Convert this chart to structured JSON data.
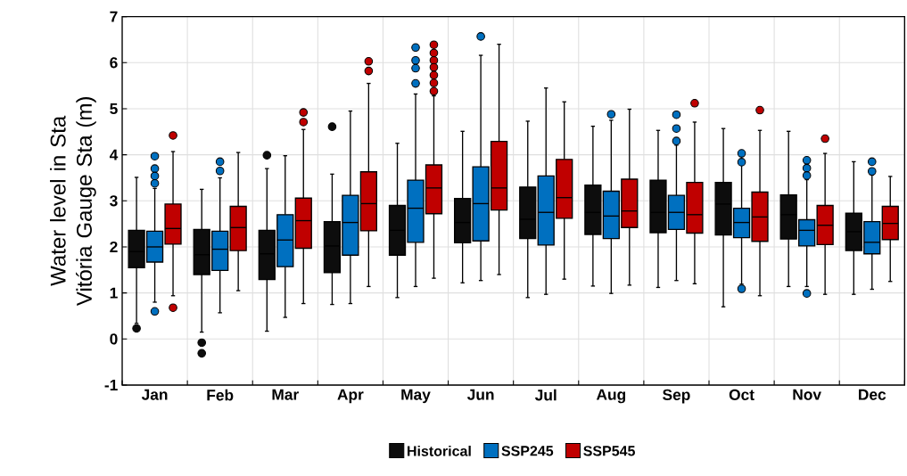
{
  "chart_data": {
    "type": "box",
    "ylabel": "Water level in Sta Vitória Gauge Sta (m)",
    "categories": [
      "Jan",
      "Feb",
      "Mar",
      "Apr",
      "May",
      "Jun",
      "Jul",
      "Aug",
      "Sep",
      "Oct",
      "Nov",
      "Dec"
    ],
    "ylim": [
      -1,
      7
    ],
    "yticks": [
      -1,
      0,
      1,
      2,
      3,
      4,
      5,
      6,
      7
    ],
    "grid": true,
    "legend": "bottom",
    "marker": "circle",
    "series": [
      {
        "name": "Historical",
        "color": "#0d0d0d",
        "boxes": [
          {
            "low": 0.34,
            "q1": 1.55,
            "median": 1.9,
            "q3": 2.36,
            "high": 3.51,
            "outliers": [
              0.23
            ]
          },
          {
            "low": 0.15,
            "q1": 1.4,
            "median": 1.83,
            "q3": 2.38,
            "high": 3.25,
            "outliers": [
              -0.08,
              -0.31
            ]
          },
          {
            "low": 0.17,
            "q1": 1.29,
            "median": 1.85,
            "q3": 2.36,
            "high": 3.7,
            "outliers": [
              3.99
            ]
          },
          {
            "low": 0.75,
            "q1": 1.44,
            "median": 2.02,
            "q3": 2.55,
            "high": 3.58,
            "outliers": [
              4.61
            ]
          },
          {
            "low": 0.9,
            "q1": 1.82,
            "median": 2.36,
            "q3": 2.9,
            "high": 4.25
          },
          {
            "low": 1.22,
            "q1": 2.09,
            "median": 2.53,
            "q3": 3.05,
            "high": 4.51
          },
          {
            "low": 0.9,
            "q1": 2.18,
            "median": 2.6,
            "q3": 3.3,
            "high": 4.73
          },
          {
            "low": 1.15,
            "q1": 2.27,
            "median": 2.75,
            "q3": 3.34,
            "high": 4.62
          },
          {
            "low": 1.12,
            "q1": 2.31,
            "median": 2.75,
            "q3": 3.45,
            "high": 4.53
          },
          {
            "low": 0.7,
            "q1": 2.26,
            "median": 2.93,
            "q3": 3.4,
            "high": 4.57
          },
          {
            "low": 1.14,
            "q1": 2.17,
            "median": 2.7,
            "q3": 3.13,
            "high": 4.51
          },
          {
            "low": 0.97,
            "q1": 1.92,
            "median": 2.33,
            "q3": 2.73,
            "high": 3.85
          }
        ]
      },
      {
        "name": "SSP245",
        "color": "#0070c0",
        "boxes": [
          {
            "low": 0.8,
            "q1": 1.67,
            "median": 2.0,
            "q3": 2.34,
            "high": 3.27,
            "outliers": [
              3.97,
              3.7,
              3.54,
              3.38,
              0.6
            ]
          },
          {
            "low": 0.57,
            "q1": 1.49,
            "median": 1.95,
            "q3": 2.34,
            "high": 3.5,
            "outliers": [
              3.85,
              3.65
            ]
          },
          {
            "low": 0.47,
            "q1": 1.57,
            "median": 2.15,
            "q3": 2.7,
            "high": 3.98
          },
          {
            "low": 0.77,
            "q1": 1.82,
            "median": 2.53,
            "q3": 3.12,
            "high": 4.95
          },
          {
            "low": 1.14,
            "q1": 2.1,
            "median": 2.84,
            "q3": 3.45,
            "high": 5.32,
            "outliers": [
              6.33,
              6.05,
              5.88,
              5.55
            ]
          },
          {
            "low": 1.27,
            "q1": 2.13,
            "median": 2.94,
            "q3": 3.74,
            "high": 6.16,
            "outliers": [
              6.57
            ]
          },
          {
            "low": 0.97,
            "q1": 2.04,
            "median": 2.75,
            "q3": 3.54,
            "high": 5.45
          },
          {
            "low": 0.99,
            "q1": 2.18,
            "median": 2.67,
            "q3": 3.21,
            "high": 4.75,
            "outliers": [
              4.88
            ]
          },
          {
            "low": 1.27,
            "q1": 2.38,
            "median": 2.75,
            "q3": 3.12,
            "high": 4.21,
            "outliers": [
              4.87,
              4.57,
              4.3
            ]
          },
          {
            "low": 1.19,
            "q1": 2.2,
            "median": 2.53,
            "q3": 2.84,
            "high": 3.78,
            "outliers": [
              4.03,
              3.84,
              1.09
            ]
          },
          {
            "low": 1.14,
            "q1": 2.02,
            "median": 2.36,
            "q3": 2.59,
            "high": 3.46,
            "outliers": [
              3.88,
              3.71,
              3.55,
              0.99
            ]
          },
          {
            "low": 1.08,
            "q1": 1.85,
            "median": 2.1,
            "q3": 2.55,
            "high": 3.56,
            "outliers": [
              3.85,
              3.64
            ]
          }
        ]
      },
      {
        "name": "SSP545",
        "color": "#c00000",
        "boxes": [
          {
            "low": 0.94,
            "q1": 2.06,
            "median": 2.4,
            "q3": 2.93,
            "high": 4.07,
            "outliers": [
              4.42,
              0.68
            ]
          },
          {
            "low": 1.05,
            "q1": 1.92,
            "median": 2.42,
            "q3": 2.88,
            "high": 4.05
          },
          {
            "low": 0.77,
            "q1": 1.97,
            "median": 2.57,
            "q3": 3.06,
            "high": 4.55,
            "outliers": [
              4.92,
              4.71
            ]
          },
          {
            "low": 1.14,
            "q1": 2.35,
            "median": 2.94,
            "q3": 3.63,
            "high": 5.55,
            "outliers": [
              6.03,
              5.82
            ]
          },
          {
            "low": 1.32,
            "q1": 2.72,
            "median": 3.28,
            "q3": 3.78,
            "high": 5.28,
            "outliers": [
              6.39,
              6.21,
              6.05,
              5.9,
              5.73,
              5.56,
              5.38
            ]
          },
          {
            "low": 1.4,
            "q1": 2.8,
            "median": 3.28,
            "q3": 4.29,
            "high": 6.4
          },
          {
            "low": 1.3,
            "q1": 2.62,
            "median": 3.07,
            "q3": 3.9,
            "high": 5.15
          },
          {
            "low": 1.17,
            "q1": 2.42,
            "median": 2.78,
            "q3": 3.47,
            "high": 4.99
          },
          {
            "low": 1.2,
            "q1": 2.3,
            "median": 2.7,
            "q3": 3.4,
            "high": 4.71,
            "outliers": [
              5.12
            ]
          },
          {
            "low": 0.94,
            "q1": 2.12,
            "median": 2.65,
            "q3": 3.19,
            "high": 4.53,
            "outliers": [
              4.97
            ]
          },
          {
            "low": 0.97,
            "q1": 2.05,
            "median": 2.47,
            "q3": 2.9,
            "high": 4.03,
            "outliers": [
              4.35
            ]
          },
          {
            "low": 1.25,
            "q1": 2.16,
            "median": 2.51,
            "q3": 2.88,
            "high": 3.53
          }
        ]
      }
    ]
  }
}
